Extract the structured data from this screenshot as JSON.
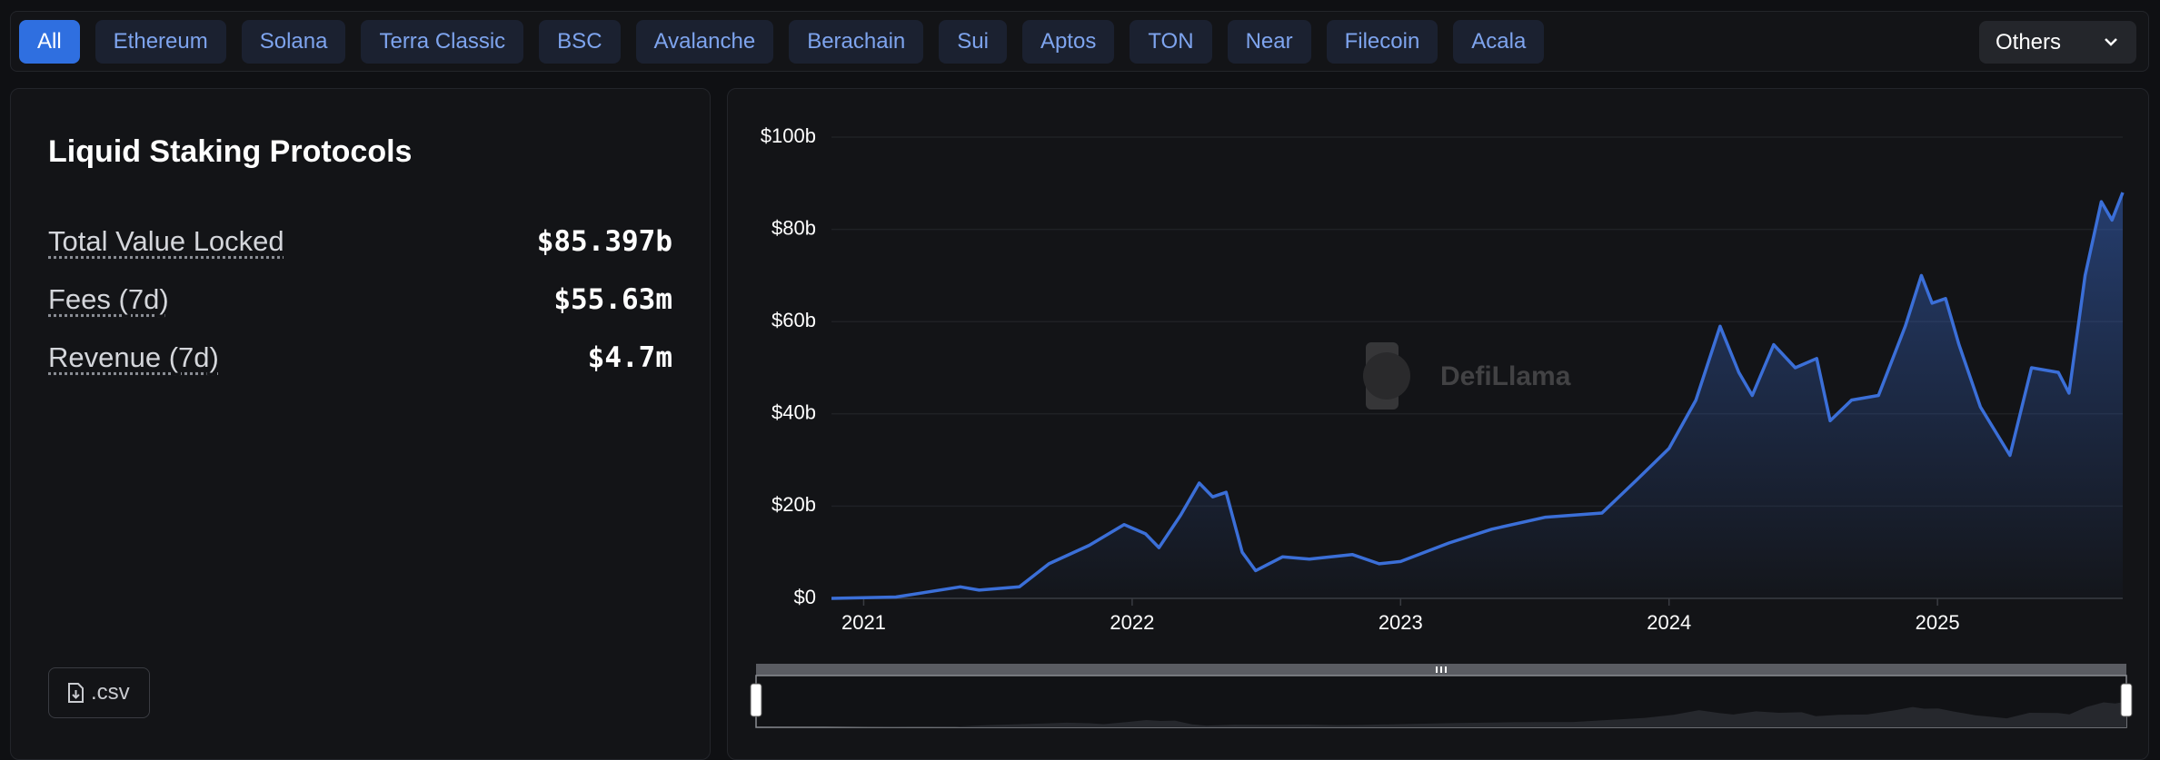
{
  "tabs": [
    "All",
    "Ethereum",
    "Solana",
    "Terra Classic",
    "BSC",
    "Avalanche",
    "Berachain",
    "Sui",
    "Aptos",
    "TON",
    "Near",
    "Filecoin",
    "Acala"
  ],
  "dropdown": "Others",
  "panel": {
    "title": "Liquid Staking Protocols",
    "stats": [
      {
        "label": "Total Value Locked",
        "value": "$85.397b"
      },
      {
        "label": "Fees (7d)",
        "value": "$55.63m"
      },
      {
        "label": "Revenue (7d)",
        "value": "$4.7m"
      }
    ],
    "csv_button": ".csv"
  },
  "chart_data": {
    "type": "area",
    "watermark": "DefiLlama",
    "color": "#3b6fd8",
    "x": [
      2020.88,
      2021.12,
      2021.36,
      2021.43,
      2021.58,
      2021.69,
      2021.84,
      2021.97,
      2022.05,
      2022.1,
      2022.18,
      2022.25,
      2022.3,
      2022.35,
      2022.41,
      2022.46,
      2022.56,
      2022.66,
      2022.82,
      2022.92,
      2023.0,
      2023.18,
      2023.34,
      2023.54,
      2023.75,
      2023.88,
      2024.0,
      2024.1,
      2024.19,
      2024.26,
      2024.31,
      2024.39,
      2024.47,
      2024.55,
      2024.6,
      2024.68,
      2024.78,
      2024.88,
      2024.94,
      2024.98,
      2025.03,
      2025.08,
      2025.16,
      2025.27,
      2025.35,
      2025.45,
      2025.49,
      2025.55,
      2025.61,
      2025.65,
      2025.69
    ],
    "values": [
      0,
      0.3,
      2.5,
      1.8,
      2.5,
      7.5,
      11.5,
      16,
      14,
      11,
      18,
      25,
      22,
      23,
      10,
      6,
      9,
      8.5,
      9.5,
      7.5,
      8,
      12,
      15,
      17.6,
      18.5,
      25.7,
      32.5,
      43,
      59,
      49,
      44,
      55,
      50,
      52,
      38.5,
      43,
      44,
      59,
      70,
      64,
      65,
      55,
      41.5,
      31,
      50,
      49,
      44.5,
      70,
      86,
      82,
      88
    ],
    "xlim": [
      2020.88,
      2025.69
    ],
    "xticks": [
      2021,
      2022,
      2023,
      2024,
      2025
    ],
    "ylim": [
      0,
      100
    ],
    "yticks": [
      {
        "value": 0,
        "label": "$0"
      },
      {
        "value": 20,
        "label": "$20b"
      },
      {
        "value": 40,
        "label": "$40b"
      },
      {
        "value": 60,
        "label": "$60b"
      },
      {
        "value": 80,
        "label": "$80b"
      },
      {
        "value": 100,
        "label": "$100b"
      }
    ],
    "grid": true
  }
}
